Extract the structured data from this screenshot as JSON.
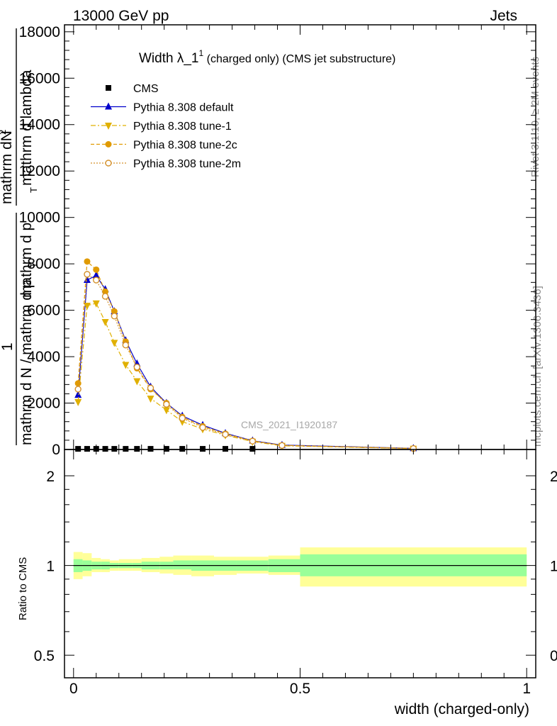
{
  "header": {
    "left": "13000 GeV pp",
    "right": "Jets"
  },
  "side_labels": {
    "rivet": "Rivet 3.1.10, ≥ 2M events",
    "mcplots": "mcplots.cern.ch [arXiv:1306.3436]"
  },
  "plot_title": {
    "main": "Width λ_1",
    "sup": "1",
    "rest": " (charged only) (CMS jet substructure)"
  },
  "watermark": "CMS_2021_I1920187",
  "chart_data": [
    {
      "type": "line",
      "panel": "main",
      "ylabel": {
        "numer_top": "mathrm d",
        "numer_n": "N",
        "numer_sup": "2",
        "mid": "mathrm d p",
        "mid_sub": "T",
        "mid_rest": " mathrm d lambda",
        "prefix": "1",
        "denom": "mathrm d N / mathrm d p",
        "denom_sub": "T"
      },
      "xlim": [
        -0.02,
        1.02
      ],
      "ylim": [
        0,
        18300
      ],
      "yticks": [
        0,
        2000,
        4000,
        6000,
        8000,
        10000,
        12000,
        14000,
        16000,
        18000
      ],
      "ytick_labels": [
        "0",
        "2000",
        "4000",
        "6000",
        "8000",
        "10000",
        "12000",
        "14000",
        "16000",
        "18000"
      ],
      "legend_position": "top-left",
      "legend": [
        {
          "label": "CMS",
          "color": "#000000",
          "marker": "square",
          "line": "none"
        },
        {
          "label": "Pythia 8.308 default",
          "color": "#0000cc",
          "marker": "triangle-up",
          "line": "solid"
        },
        {
          "label": "Pythia 8.308 tune-1",
          "color": "#e0b000",
          "marker": "triangle-down",
          "line": "dashdot"
        },
        {
          "label": "Pythia 8.308 tune-2c",
          "color": "#e09a00",
          "marker": "circle",
          "line": "dashed"
        },
        {
          "label": "Pythia 8.308 tune-2m",
          "color": "#d4902a",
          "marker": "open-circle",
          "line": "dotted"
        }
      ],
      "x": [
        0.01,
        0.03,
        0.05,
        0.07,
        0.09,
        0.115,
        0.14,
        0.17,
        0.205,
        0.24,
        0.285,
        0.335,
        0.395,
        0.46,
        0.75
      ],
      "series": [
        {
          "name": "CMS",
          "values": [
            28,
            28,
            28,
            28,
            28,
            28,
            28,
            28,
            28,
            28,
            28,
            28,
            28,
            0,
            0
          ]
        },
        {
          "name": "Pythia 8.308 default",
          "values": [
            2350,
            7300,
            7500,
            6900,
            5950,
            4700,
            3700,
            2700,
            2000,
            1450,
            1050,
            700,
            380,
            190,
            50
          ]
        },
        {
          "name": "Pythia 8.308 tune-1",
          "values": [
            2050,
            6200,
            6300,
            5500,
            4600,
            3650,
            2950,
            2200,
            1700,
            1200,
            880,
            620,
            340,
            160,
            40
          ]
        },
        {
          "name": "Pythia 8.308 tune-2c",
          "values": [
            2850,
            8100,
            7750,
            6800,
            5950,
            4650,
            3500,
            2600,
            2000,
            1400,
            1000,
            680,
            370,
            180,
            45
          ]
        },
        {
          "name": "Pythia 8.308 tune-2m",
          "values": [
            2600,
            7550,
            7300,
            6600,
            5750,
            4500,
            3550,
            2650,
            1950,
            1350,
            950,
            650,
            360,
            175,
            45
          ]
        }
      ]
    },
    {
      "type": "area",
      "panel": "ratio",
      "ylabel": "Ratio to CMS",
      "xlabel": "width (charged-only)",
      "xlim": [
        -0.02,
        1.02
      ],
      "ylim": [
        0.42,
        2.45
      ],
      "log_scale": true,
      "yticks": [
        0.5,
        1,
        2
      ],
      "ytick_labels": [
        "0.5",
        "1",
        "2"
      ],
      "xticks": [
        0,
        0.5,
        1
      ],
      "xtick_labels": [
        "0",
        "0.5",
        "1"
      ],
      "bin_edges": [
        0.0,
        0.02,
        0.04,
        0.06,
        0.08,
        0.1,
        0.13,
        0.15,
        0.19,
        0.22,
        0.26,
        0.31,
        0.36,
        0.43,
        0.5,
        1.0
      ],
      "stat_band": {
        "name": "stat",
        "color": "#99ff99",
        "lower": [
          0.95,
          0.96,
          0.97,
          0.97,
          0.98,
          0.98,
          0.98,
          0.97,
          0.97,
          0.97,
          0.96,
          0.96,
          0.96,
          0.95,
          0.92
        ],
        "upper": [
          1.05,
          1.04,
          1.03,
          1.03,
          1.02,
          1.02,
          1.02,
          1.03,
          1.03,
          1.04,
          1.04,
          1.04,
          1.04,
          1.05,
          1.09
        ]
      },
      "total_band": {
        "name": "stat+syst",
        "color": "#ffff99",
        "lower": [
          0.9,
          0.92,
          0.95,
          0.95,
          0.96,
          0.96,
          0.96,
          0.95,
          0.94,
          0.93,
          0.92,
          0.93,
          0.94,
          0.93,
          0.85
        ],
        "upper": [
          1.11,
          1.1,
          1.06,
          1.05,
          1.04,
          1.05,
          1.05,
          1.06,
          1.07,
          1.08,
          1.08,
          1.07,
          1.07,
          1.08,
          1.15
        ]
      },
      "reference_line": 1
    }
  ]
}
